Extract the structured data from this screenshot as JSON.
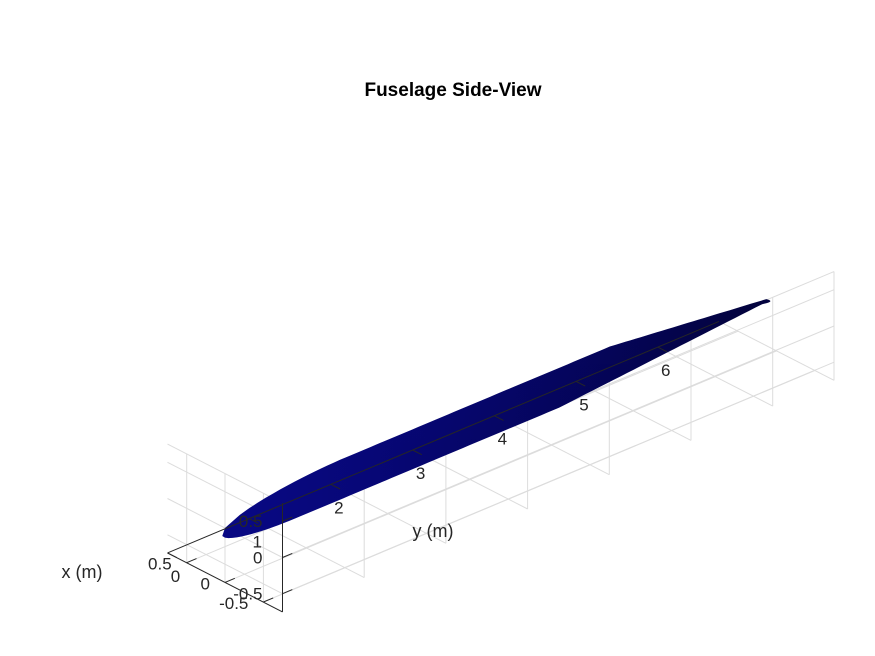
{
  "chart_data": {
    "type": "surface3d",
    "title": "Fuselage Side-View",
    "xlabel": "x (m)",
    "ylabel": "y (m)",
    "zlabel": "",
    "xlim": [
      -0.75,
      0.75
    ],
    "ylim": [
      0,
      6.75
    ],
    "zlim": [
      -0.75,
      0.75
    ],
    "x_ticks": [
      "-0.5",
      "0",
      "0.5"
    ],
    "y_ticks": [
      "0",
      "1",
      "2",
      "3",
      "4",
      "5",
      "6"
    ],
    "z_ticks": [
      "-0.5",
      "0",
      "0.5"
    ],
    "grid": true,
    "surface_color": "#0a0a8c",
    "surface": {
      "name": "fuselage",
      "nose_length": 1.2,
      "cylinder_end": 4.4,
      "tail_end": 6.6,
      "max_radius": 0.6,
      "tail_radius": 0.05
    }
  }
}
